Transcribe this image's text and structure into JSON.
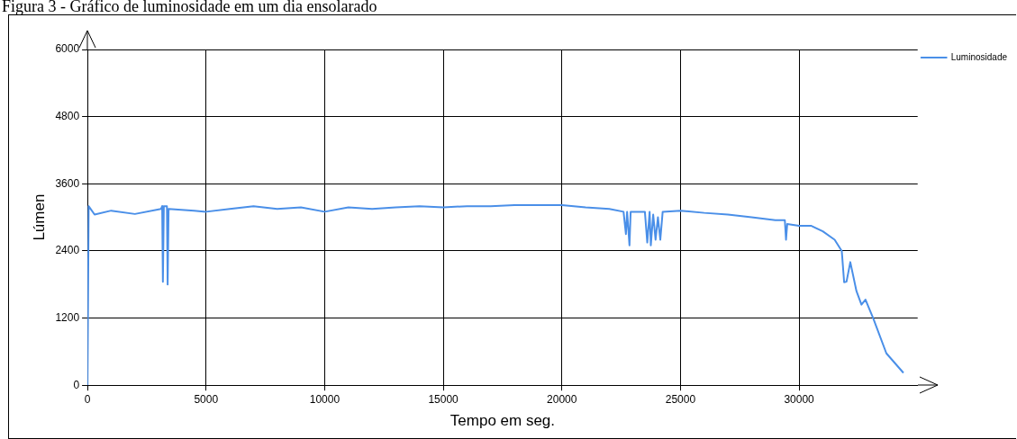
{
  "chart_data": {
    "type": "line",
    "title": "Figura 3 - Gráfico de luminosidade em um dia ensolarado",
    "xlabel": "Tempo em seg.",
    "ylabel": "Lúmen",
    "xlim": [
      0,
      35000
    ],
    "xticks": [
      0,
      5000,
      10000,
      15000,
      20000,
      25000,
      30000
    ],
    "ylim": [
      0,
      6000
    ],
    "yticks": [
      0,
      1200,
      2400,
      3600,
      4800,
      6000
    ],
    "grid": true,
    "legend": "top right",
    "marker": "none",
    "line_style": "solid",
    "series": [
      {
        "name": "Luminosidade",
        "color": "#4a8fe8",
        "x": [
          0,
          50,
          300,
          1000,
          2000,
          3100,
          3150,
          3180,
          3220,
          3350,
          3380,
          3420,
          4500,
          5000,
          6000,
          7000,
          8000,
          9000,
          10000,
          11000,
          12000,
          13000,
          14000,
          15000,
          16000,
          17000,
          18000,
          19000,
          20000,
          21000,
          22000,
          22600,
          22700,
          22750,
          22850,
          22900,
          23000,
          23500,
          23600,
          23700,
          23750,
          23850,
          23950,
          24050,
          24150,
          24250,
          25000,
          26000,
          27000,
          28000,
          29000,
          29400,
          29450,
          29500,
          30000,
          30500,
          31000,
          31500,
          31800,
          31900,
          32000,
          32160,
          32420,
          32630,
          32800,
          33130,
          33680,
          34400
        ],
        "values": [
          0,
          3200,
          3050,
          3120,
          3060,
          3150,
          3200,
          1850,
          3200,
          3200,
          1800,
          3150,
          3120,
          3100,
          3150,
          3200,
          3150,
          3180,
          3100,
          3180,
          3150,
          3180,
          3200,
          3180,
          3200,
          3200,
          3220,
          3220,
          3220,
          3180,
          3150,
          3100,
          2700,
          3100,
          2500,
          3100,
          3100,
          3100,
          2550,
          3100,
          2500,
          3050,
          2600,
          3000,
          2600,
          3100,
          3120,
          3080,
          3050,
          3000,
          2950,
          2950,
          2600,
          2880,
          2850,
          2850,
          2750,
          2600,
          2400,
          1840,
          1850,
          2200,
          1680,
          1440,
          1530,
          1190,
          570,
          220
        ]
      }
    ]
  }
}
